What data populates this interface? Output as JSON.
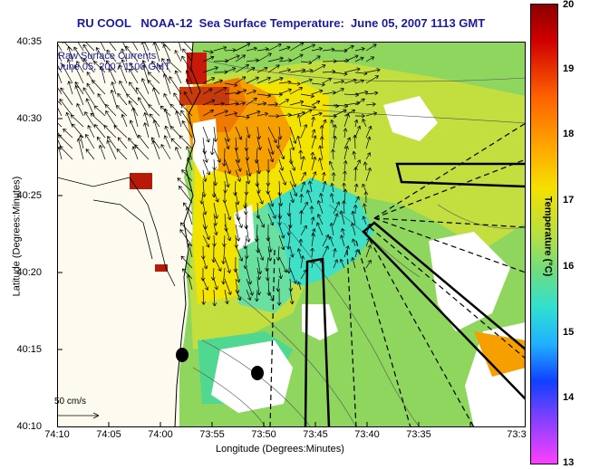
{
  "title": "RU COOL   NOAA-12  Sea Surface Temperature:  June 05, 2007 1113 GMT",
  "legend": {
    "line1": "Raw Surface Currents",
    "line2": "June 05, 2007 1100 GMT"
  },
  "axes": {
    "xlabel": "Longitude (Degrees:Minutes)",
    "ylabel": "Latitude (Degrees:Minutes)",
    "xticks": [
      "74:10",
      "74:05",
      "74:00",
      "73:55",
      "73:50",
      "73:45",
      "73:40",
      "73:35",
      "73:3"
    ],
    "yticks": [
      "40:35",
      "40:30",
      "40:25",
      "40:20",
      "40:15",
      "40:10"
    ]
  },
  "colorbar": {
    "label": "Temperature (°C)",
    "ticks": [
      "20",
      "19",
      "18",
      "17",
      "16",
      "15",
      "14",
      "13"
    ],
    "range": [
      13,
      20
    ]
  },
  "scale_arrow_label": "50 cm/s",
  "colors": {
    "land": "#fdfbf0",
    "title": "#1a1aa0"
  }
}
